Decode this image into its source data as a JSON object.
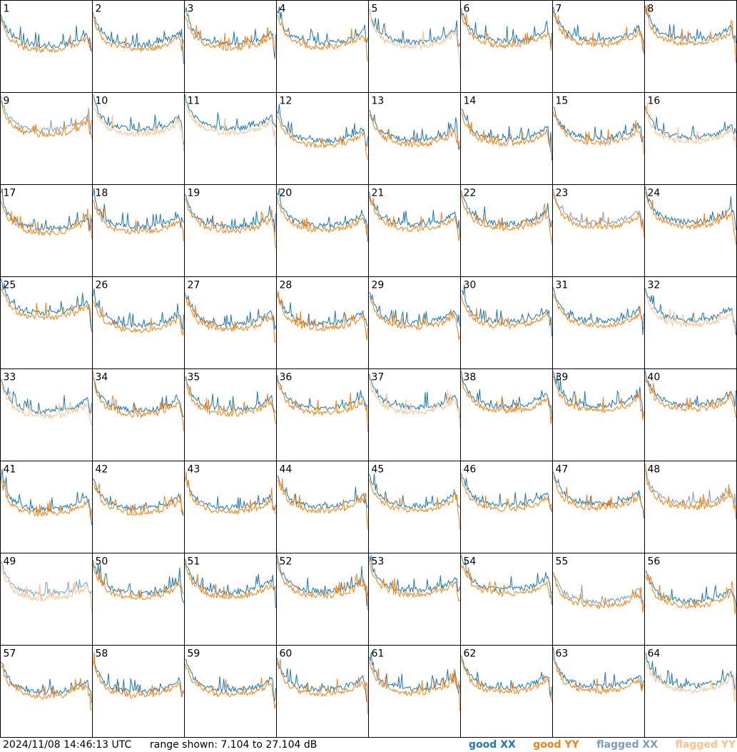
{
  "chart_data": {
    "type": "line",
    "layout": "8x8 small-multiple spectra grid",
    "panels": [
      "1",
      "2",
      "3",
      "4",
      "5",
      "6",
      "7",
      "8",
      "9",
      "10",
      "11",
      "12",
      "13",
      "14",
      "15",
      "16",
      "17",
      "18",
      "19",
      "20",
      "21",
      "22",
      "23",
      "24",
      "25",
      "26",
      "27",
      "28",
      "29",
      "30",
      "31",
      "32",
      "33",
      "34",
      "35",
      "36",
      "37",
      "38",
      "39",
      "40",
      "41",
      "42",
      "43",
      "44",
      "45",
      "46",
      "47",
      "48",
      "49",
      "50",
      "51",
      "52",
      "53",
      "54",
      "55",
      "56",
      "57",
      "58",
      "59",
      "60",
      "61",
      "62",
      "63",
      "64"
    ],
    "series": [
      {
        "name": "good XX",
        "color": "#1f77b4"
      },
      {
        "name": "good YY",
        "color": "#ff7f0e"
      },
      {
        "name": "flagged XX",
        "color": "#7a9cc0"
      },
      {
        "name": "flagged YY",
        "color": "#ffbf8c"
      }
    ],
    "flagged": {
      "xx": [
        "9",
        "23",
        "48",
        "49",
        "55"
      ],
      "yy": [
        "5",
        "10",
        "11",
        "16",
        "32",
        "33",
        "37",
        "49",
        "64"
      ]
    },
    "ylim": [
      7.104,
      27.104
    ],
    "grid": false
  },
  "footer": {
    "timestamp": "2024/11/08 14:46:13 UTC",
    "range_text": "range shown: 7.104 to 27.104 dB"
  },
  "legend": {
    "good_xx": "good XX",
    "good_yy": "good YY",
    "flagged_xx": "flagged XX",
    "flagged_yy": "flagged YY"
  }
}
